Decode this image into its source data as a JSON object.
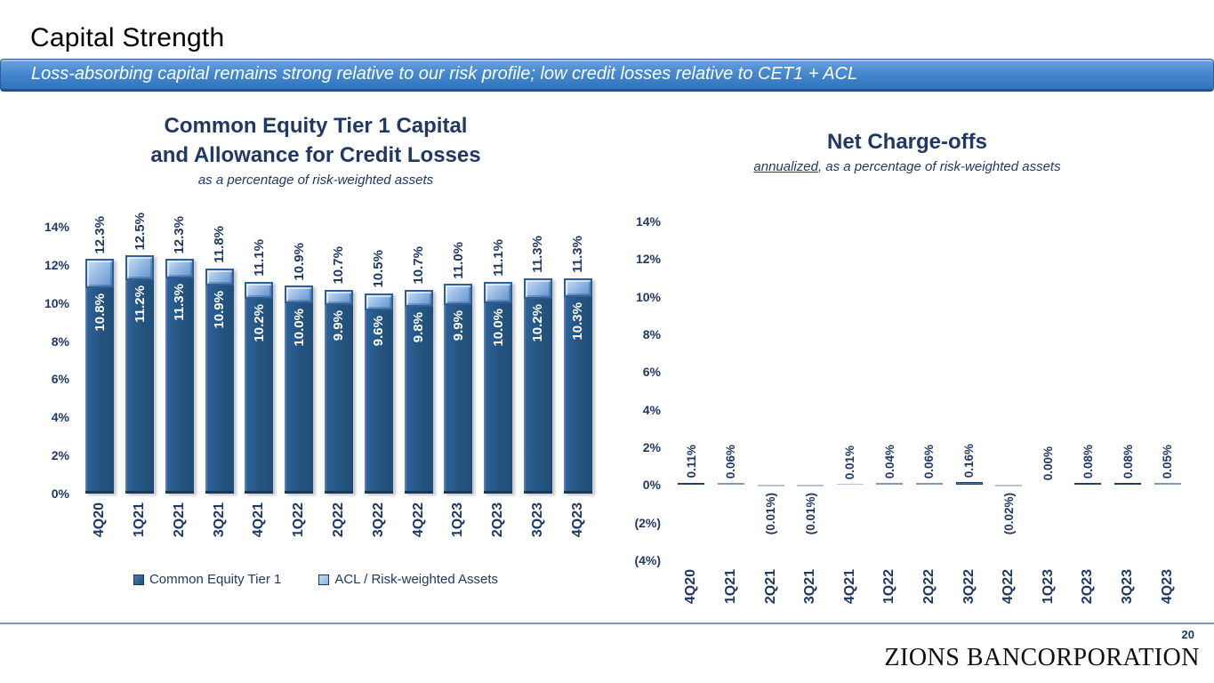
{
  "page": {
    "title": "Capital Strength",
    "banner": "Loss-absorbing capital remains strong relative to our risk profile; low credit losses relative to CET1 + ACL",
    "page_number": "20",
    "logo": "ZIONS BANCORPORATION"
  },
  "colors": {
    "navy_text": "#1F3864",
    "cet1_bar": "#1F4E79",
    "acl_bar": "#8EB4E3",
    "banner_top": "#6BA3DD",
    "banner_bottom": "#2F74C0",
    "footer_line": "#8496B0"
  },
  "chart_data": [
    {
      "type": "bar",
      "stacked": true,
      "title_lines": [
        "Common Equity Tier 1 Capital",
        "and Allowance for Credit Losses"
      ],
      "subtitle": "as a percentage of risk-weighted assets",
      "categories": [
        "4Q20",
        "1Q21",
        "2Q21",
        "3Q21",
        "4Q21",
        "1Q22",
        "2Q22",
        "3Q22",
        "4Q22",
        "1Q23",
        "2Q23",
        "3Q23",
        "4Q23"
      ],
      "series": [
        {
          "name": "Common Equity Tier 1",
          "values": [
            10.8,
            11.2,
            11.3,
            10.9,
            10.2,
            10.0,
            9.9,
            9.6,
            9.8,
            9.9,
            10.0,
            10.2,
            10.3
          ],
          "color": "#1F4E79"
        },
        {
          "name": "ACL / Risk-weighted Assets",
          "values": [
            1.5,
            1.3,
            1.0,
            0.9,
            0.9,
            0.9,
            0.8,
            0.9,
            0.9,
            1.1,
            1.1,
            1.1,
            1.0
          ],
          "color": "#8EB4E3"
        }
      ],
      "cet1_labels": [
        "10.8%",
        "11.2%",
        "11.3%",
        "10.9%",
        "10.2%",
        "10.0%",
        "9.9%",
        "9.6%",
        "9.8%",
        "9.9%",
        "10.0%",
        "10.2%",
        "10.3%"
      ],
      "total_labels": [
        "12.3%",
        "12.5%",
        "12.3%",
        "11.8%",
        "11.1%",
        "10.9%",
        "10.7%",
        "10.5%",
        "10.7%",
        "11.0%",
        "11.1%",
        "11.3%",
        "11.3%"
      ],
      "y_ticks": [
        "14%",
        "12%",
        "10%",
        "8%",
        "6%",
        "4%",
        "2%",
        "0%"
      ],
      "ylim": [
        0,
        14
      ],
      "grid": false,
      "legend_position": "bottom"
    },
    {
      "type": "bar",
      "title": "Net Charge-offs",
      "subtitle_underlined": "annualized",
      "subtitle_rest": ", as a percentage of risk-weighted assets",
      "categories": [
        "4Q20",
        "1Q21",
        "2Q21",
        "3Q21",
        "4Q21",
        "1Q22",
        "2Q22",
        "3Q22",
        "4Q22",
        "1Q23",
        "2Q23",
        "3Q23",
        "4Q23"
      ],
      "values": [
        0.11,
        0.06,
        -0.01,
        -0.01,
        0.01,
        0.04,
        0.06,
        0.16,
        -0.02,
        0.0,
        0.08,
        0.08,
        0.05
      ],
      "value_labels": [
        "0.11%",
        "0.06%",
        "(0.01%)",
        "(0.01%)",
        "0.01%",
        "0.04%",
        "0.06%",
        "0.16%",
        "(0.02%)",
        "0.00%",
        "0.08%",
        "0.08%",
        "0.05%"
      ],
      "y_ticks": [
        "14%",
        "12%",
        "10%",
        "8%",
        "6%",
        "4%",
        "2%",
        "0%",
        "(2%)",
        "(4%)"
      ],
      "ylim": [
        -4,
        14
      ],
      "grid": false
    }
  ]
}
